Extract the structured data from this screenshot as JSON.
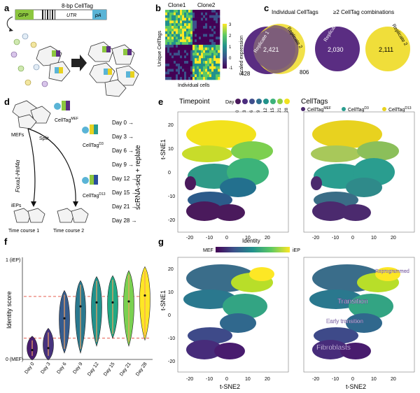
{
  "panel_letters": [
    "a",
    "b",
    "c",
    "d",
    "e",
    "f",
    "g"
  ],
  "panel_a": {
    "construct_title": "8-bp CellTag",
    "gfp": "GFP",
    "utr": "UTR",
    "pa": "pA"
  },
  "panel_b": {
    "clone1": "Clone1",
    "clone2": "Clone2",
    "ylabel": "Unique CellTags",
    "xlabel": "Individual cells",
    "colorbar_label": "Scaled expression",
    "colorbar_ticks": [
      "3",
      "2",
      "1",
      "0",
      "-1"
    ]
  },
  "panel_c": {
    "left_title": "Individual CellTags",
    "right_title": "≥2 CellTag combinations",
    "rep1": "Replicate 1",
    "rep2": "Replicate 2",
    "left_only1": "428",
    "left_overlap": "2,421",
    "left_only2": "806",
    "right_only1": "2,030",
    "right_only2": "2,111"
  },
  "panel_d": {
    "mefs": "MEFs",
    "celltag_mef": "CellTag",
    "celltag_mef_sup": "MEF",
    "split": "Split",
    "factors": "Foxa1-Hnf4α",
    "celltag_d3": "CellTag",
    "celltag_d3_sup": "D3",
    "celltag_d13": "CellTag",
    "celltag_d13_sup": "D13",
    "ieps": "iEPs",
    "tc1": "Time course 1",
    "tc2": "Time course 2",
    "days": [
      "Day 0",
      "Day 3",
      "Day 6",
      "Day 9",
      "Day 12",
      "Day 15",
      "Day 21",
      "Day 28"
    ],
    "side_label": "scRNA-seq + replate"
  },
  "panel_e": {
    "timepoint_title": "Timepoint",
    "day_label": "Day",
    "day_ticks": [
      "0",
      "3",
      "6",
      "9",
      "12",
      "15",
      "21",
      "28"
    ],
    "day_colors": [
      "#4a1a5c",
      "#4c2d7e",
      "#3f4f8c",
      "#2f6e8e",
      "#22938a",
      "#3db27a",
      "#8ecf45",
      "#f2e21d"
    ],
    "celltags_title": "CellTags",
    "legend": [
      {
        "label": "CellTag",
        "sup": "MEF",
        "color": "#4b2a6e"
      },
      {
        "label": "CellTag",
        "sup": "D3",
        "color": "#2a9d8f"
      },
      {
        "label": "CellTag",
        "sup": "D13",
        "color": "#e8d21f"
      }
    ],
    "ylabel": "t-SNE1",
    "y_ticks": [
      "20",
      "10",
      "0",
      "-10",
      "-20"
    ],
    "x_ticks": [
      "-20",
      "-10",
      "0",
      "10",
      "20"
    ]
  },
  "panel_f": {
    "ylabel": "Identity score",
    "ytop": "1 (iEP)",
    "ybottom": "0 (MEF)",
    "categories": [
      "Day 0",
      "Day 3",
      "Day 6",
      "Day 9",
      "Day 12",
      "Day 15",
      "Day 21",
      "Day 28"
    ]
  },
  "panel_g": {
    "identity_label": "Identity",
    "mef": "MEF",
    "iep": "iEP",
    "ylabel": "t-SNE1",
    "xlabel": "t-SNE2",
    "y_ticks": [
      "20",
      "10",
      "0",
      "-10",
      "-20"
    ],
    "x_ticks": [
      "-20",
      "-10",
      "0",
      "10",
      "20"
    ],
    "annotations": [
      "Reprogrammed",
      "Transition",
      "Early transition",
      "Fibroblasts"
    ]
  },
  "chart_data": {
    "type": "violin",
    "title": "Identity score by day",
    "xlabel": "",
    "ylabel": "Identity score",
    "ylim": [
      0,
      1
    ],
    "categories": [
      "Day 0",
      "Day 3",
      "Day 6",
      "Day 9",
      "Day 12",
      "Day 15",
      "Day 21",
      "Day 28"
    ],
    "medians": [
      0.08,
      0.1,
      0.4,
      0.52,
      0.56,
      0.56,
      0.57,
      0.63
    ],
    "mins": [
      -0.02,
      -0.02,
      0.05,
      0.05,
      0.12,
      0.2,
      0.12,
      0.18
    ],
    "maxs": [
      0.22,
      0.3,
      0.68,
      0.78,
      0.82,
      0.83,
      0.88,
      0.92
    ],
    "colors": [
      "#481c6e",
      "#46337e",
      "#365c8d",
      "#2a788e",
      "#21918c",
      "#22a884",
      "#7ad151",
      "#fde725"
    ],
    "reference_lines": [
      0.62,
      0.2
    ]
  }
}
